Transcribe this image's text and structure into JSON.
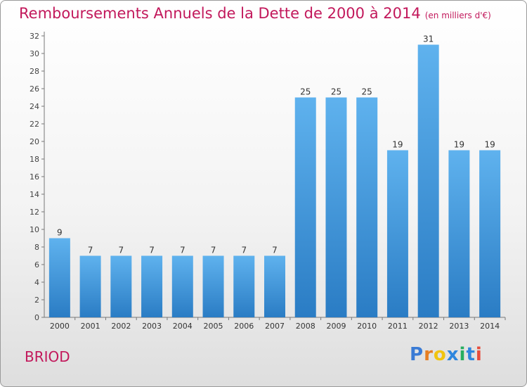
{
  "chart_data": {
    "type": "bar",
    "title": "Remboursements Annuels de la Dette de 2000 à 2014",
    "subtitle": "(en milliers d'€)",
    "categories": [
      "2000",
      "2001",
      "2002",
      "2003",
      "2004",
      "2005",
      "2006",
      "2007",
      "2008",
      "2009",
      "2010",
      "2011",
      "2012",
      "2013",
      "2014"
    ],
    "values": [
      9,
      7,
      7,
      7,
      7,
      7,
      7,
      7,
      25,
      25,
      25,
      19,
      31,
      19,
      19
    ],
    "ylim": [
      0,
      32
    ],
    "yticks": [
      0,
      2,
      4,
      6,
      8,
      10,
      12,
      14,
      16,
      18,
      20,
      22,
      24,
      26,
      28,
      30,
      32
    ],
    "grid": false,
    "bar_color": "#3a8fd6",
    "label_color": "#333333"
  },
  "commune": "BRIOD",
  "brand": {
    "name": "Proxiti",
    "letters": [
      "P",
      "r",
      "o",
      "x",
      "i",
      "t",
      "i"
    ],
    "colors": [
      "#3a7bd5",
      "#e67e22",
      "#f1c40f",
      "#2e86de",
      "#27ae60",
      "#2e86de",
      "#e74c3c"
    ]
  },
  "colors": {
    "title": "#c2185b"
  }
}
